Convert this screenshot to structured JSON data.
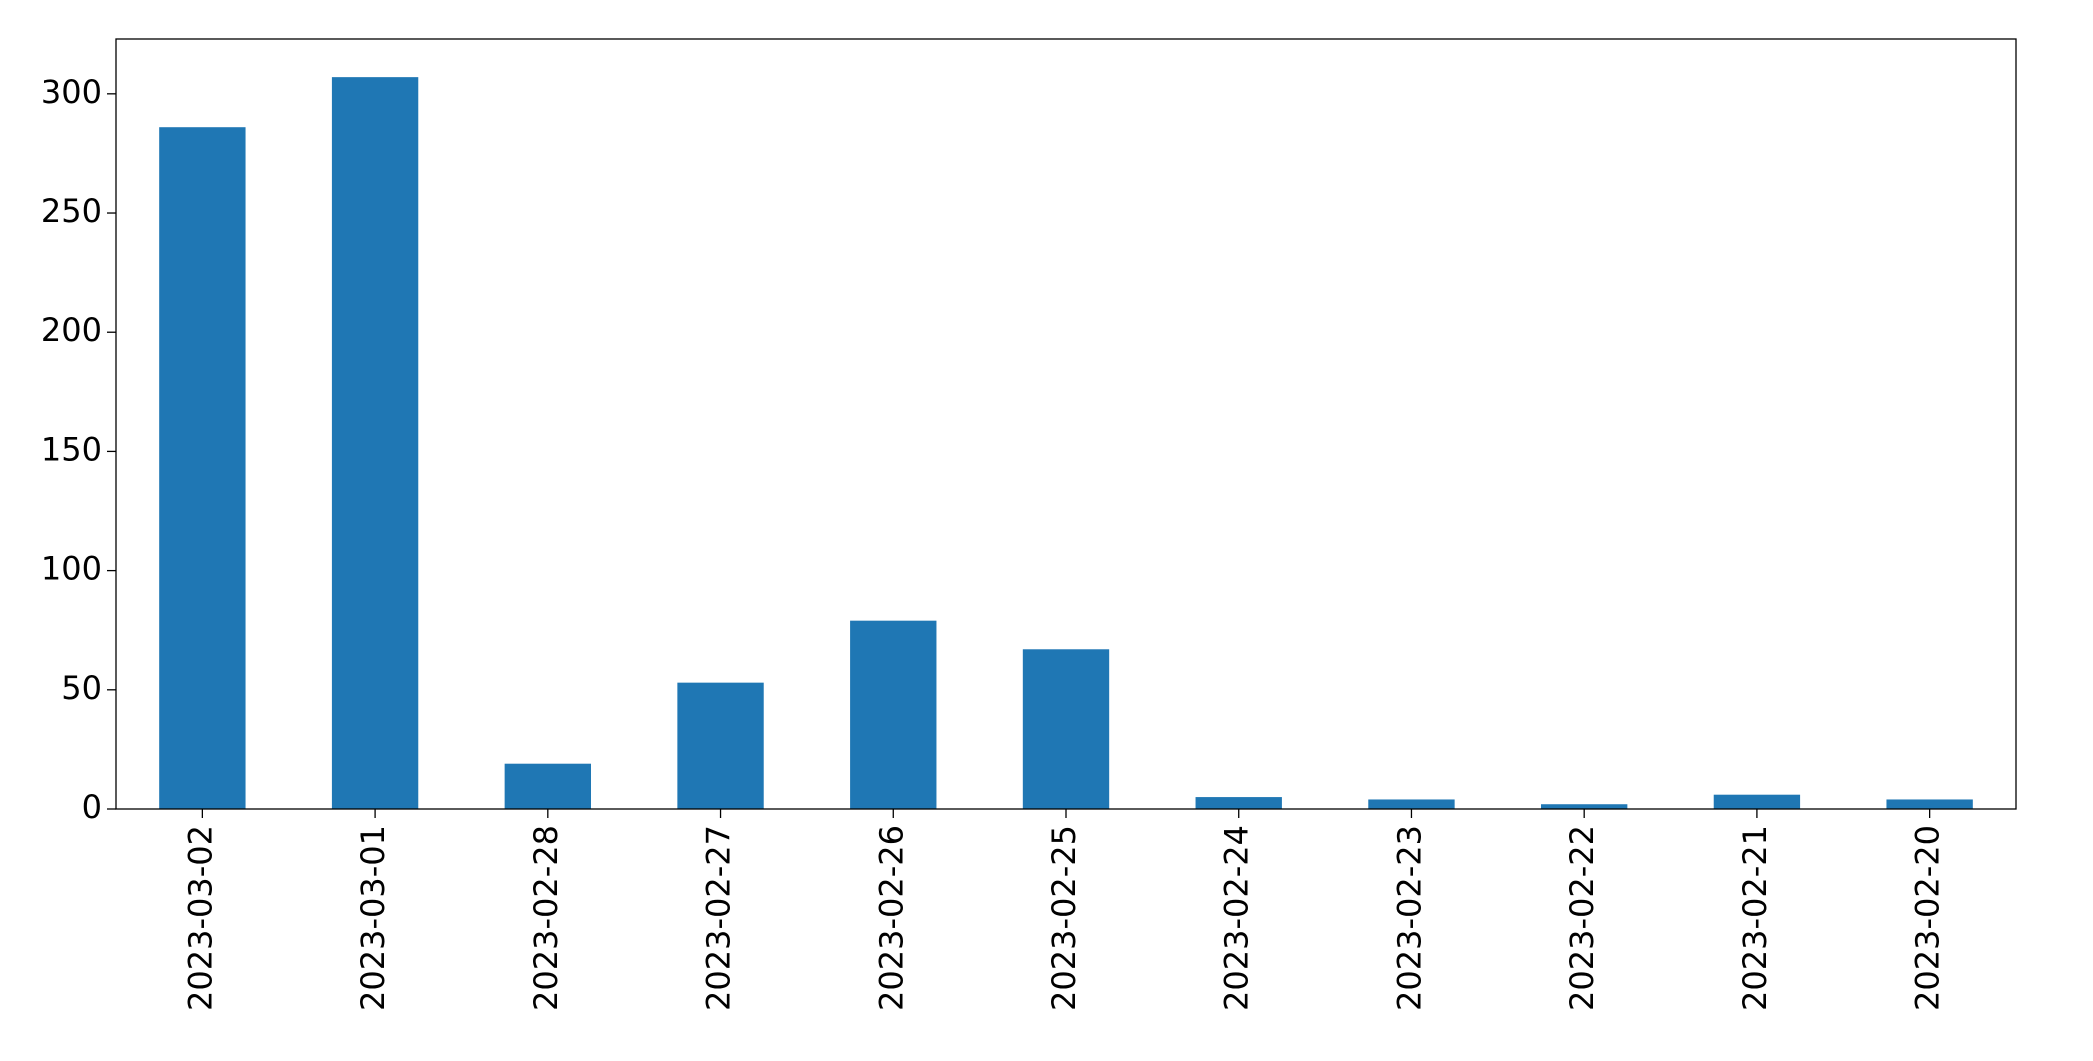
{
  "chart_data": {
    "type": "bar",
    "categories": [
      "2023-03-02",
      "2023-03-01",
      "2023-02-28",
      "2023-02-27",
      "2023-02-26",
      "2023-02-25",
      "2023-02-24",
      "2023-02-23",
      "2023-02-22",
      "2023-02-21",
      "2023-02-20"
    ],
    "values": [
      286,
      307,
      19,
      53,
      79,
      67,
      5,
      4,
      2,
      6,
      4
    ],
    "color": "#1f77b4",
    "ylim": [
      0,
      323
    ],
    "yticks": [
      0,
      50,
      100,
      150,
      200,
      250,
      300
    ],
    "grid": false
  }
}
